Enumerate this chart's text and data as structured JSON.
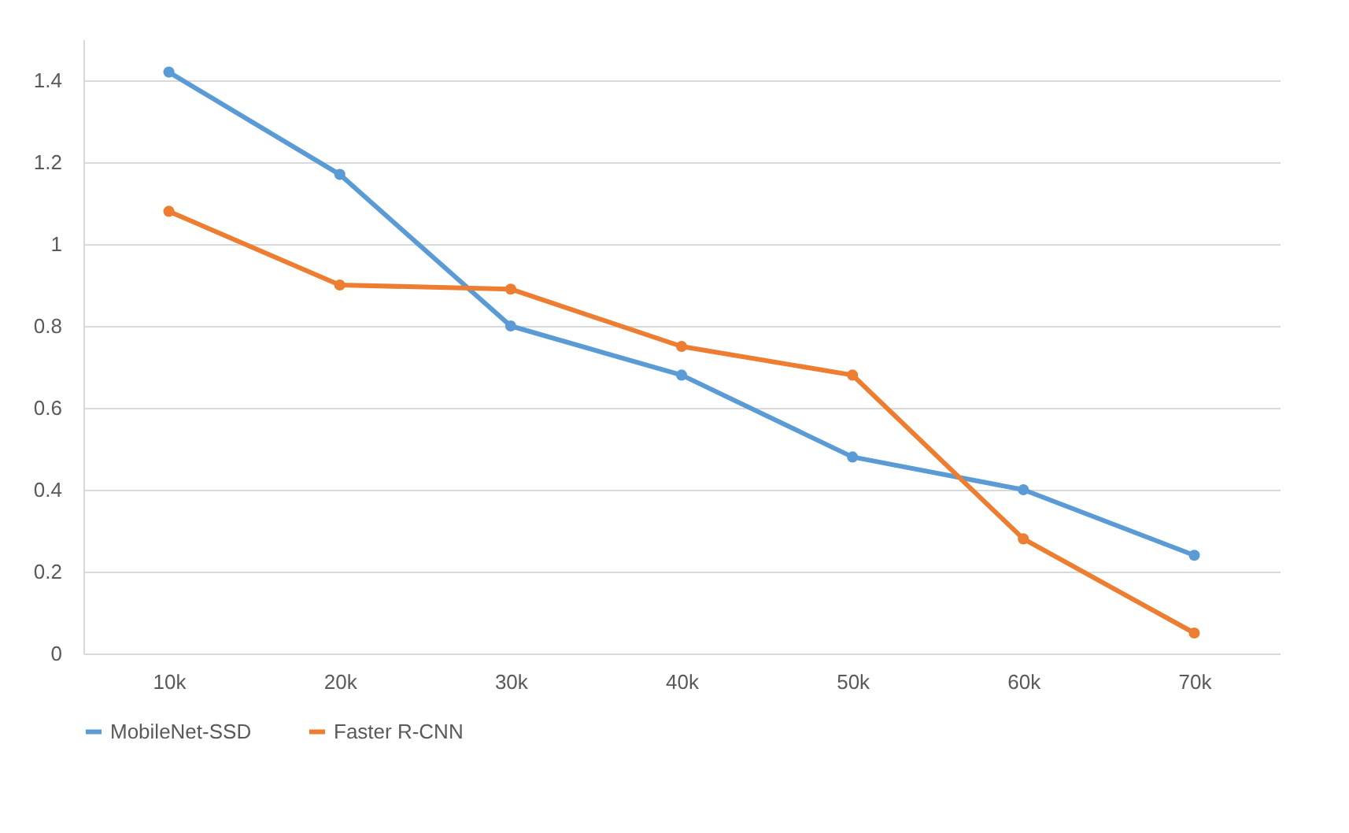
{
  "chart_data": {
    "type": "line",
    "categories": [
      "10k",
      "20k",
      "30k",
      "40k",
      "50k",
      "60k",
      "70k"
    ],
    "series": [
      {
        "name": "MobileNet-SSD",
        "color": "#5b9bd5",
        "values": [
          1.42,
          1.17,
          0.8,
          0.68,
          0.48,
          0.4,
          0.24
        ]
      },
      {
        "name": "Faster R-CNN",
        "color": "#ed7d31",
        "values": [
          1.08,
          0.9,
          0.89,
          0.75,
          0.68,
          0.28,
          0.05
        ]
      }
    ],
    "ylim": [
      0,
      1.5
    ],
    "yticks": [
      0,
      0.2,
      0.4,
      0.6,
      0.8,
      1,
      1.2,
      1.4
    ],
    "grid": "y",
    "legend": "bottom",
    "marker": "circle",
    "line_style": "solid"
  }
}
